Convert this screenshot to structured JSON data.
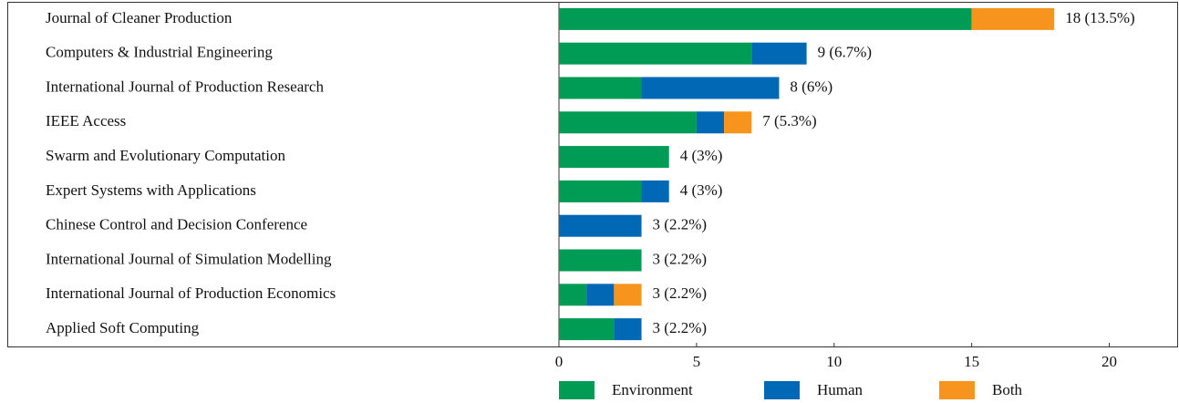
{
  "chart_data": {
    "type": "stacked_barh",
    "categories": [
      "Journal of Cleaner Production",
      "Computers & Industrial Engineering",
      "International Journal of Production Research",
      "IEEE Access",
      "Swarm and Evolutionary Computation",
      "Expert Systems with Applications",
      "Chinese Control and Decision Conference",
      "International Journal of Simulation Modelling",
      "International Journal of Production Economics",
      "Applied Soft Computing"
    ],
    "series": [
      {
        "name": "Environment",
        "color": "#009b55",
        "values": [
          15,
          7,
          3,
          5,
          4,
          3,
          0,
          3,
          1,
          2
        ]
      },
      {
        "name": "Human",
        "color": "#0068b4",
        "values": [
          0,
          2,
          5,
          1,
          0,
          1,
          3,
          0,
          1,
          1
        ]
      },
      {
        "name": "Both",
        "color": "#f7941d",
        "values": [
          3,
          0,
          0,
          1,
          0,
          0,
          0,
          0,
          1,
          0
        ]
      }
    ],
    "value_labels": [
      "18 (13.5%)",
      "9 (6.7%)",
      "8 (6%)",
      "7 (5.3%)",
      "4 (3%)",
      "4 (3%)",
      "3 (2.2%)",
      "3 (2.2%)",
      "3 (2.2%)",
      "3 (2.2%)"
    ],
    "xlim": [
      0,
      22.5
    ],
    "xticks": [
      0,
      5,
      10,
      15,
      20
    ],
    "legend": "bottom"
  }
}
